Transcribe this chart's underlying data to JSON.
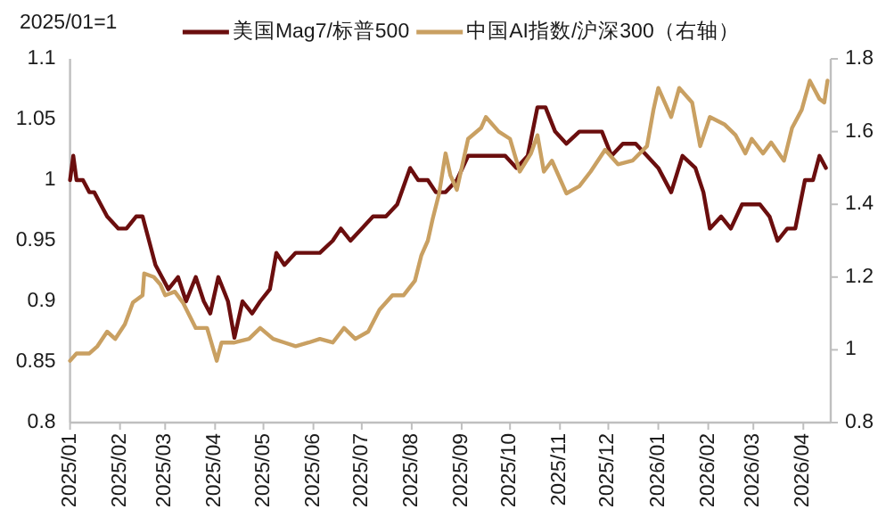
{
  "chart_data": {
    "type": "line",
    "annotations": [
      "2025/01=1"
    ],
    "xlim": [
      "2025-01-01",
      "2026-04-18"
    ],
    "xticks": [
      {
        "value": "2025-01-01",
        "label": "2025/01"
      },
      {
        "value": "2025-02-01",
        "label": "2025/02"
      },
      {
        "value": "2025-03-01",
        "label": "2025/03"
      },
      {
        "value": "2025-04-01",
        "label": "2025/04"
      },
      {
        "value": "2025-05-01",
        "label": "2025/05"
      },
      {
        "value": "2025-06-01",
        "label": "2025/06"
      },
      {
        "value": "2025-07-01",
        "label": "2025/07"
      },
      {
        "value": "2025-08-01",
        "label": "2025/08"
      },
      {
        "value": "2025-09-01",
        "label": "2025/09"
      },
      {
        "value": "2025-10-01",
        "label": "2025/10"
      },
      {
        "value": "2025-11-01",
        "label": "2025/11"
      },
      {
        "value": "2025-12-01",
        "label": "2025/12"
      },
      {
        "value": "2026-01-01",
        "label": "2026/01"
      },
      {
        "value": "2026-02-01",
        "label": "2026/02"
      },
      {
        "value": "2026-03-01",
        "label": "2026/03"
      },
      {
        "value": "2026-04-01",
        "label": "2026/04"
      }
    ],
    "ylim": [
      0.8,
      1.1
    ],
    "yticks": [
      0.8,
      0.85,
      0.9,
      0.95,
      1,
      1.05,
      1.1
    ],
    "y2lim": [
      0.8,
      1.8
    ],
    "y2ticks": [
      0.8,
      1,
      1.2,
      1.4,
      1.6,
      1.8
    ],
    "legend": "top",
    "line_style": "solid",
    "series": [
      {
        "name": "美国Mag7/标普500",
        "color": "#6b0e0e",
        "x": [
          "2025-01-01",
          "2025-01-03",
          "2025-01-05",
          "2025-01-09",
          "2025-01-13",
          "2025-01-16",
          "2025-01-20",
          "2025-01-24",
          "2025-01-31",
          "2025-02-05",
          "2025-02-11",
          "2025-02-15",
          "2025-02-19",
          "2025-02-23",
          "2025-02-27",
          "2025-03-03",
          "2025-03-09",
          "2025-03-14",
          "2025-03-20",
          "2025-03-25",
          "2025-03-29",
          "2025-04-03",
          "2025-04-09",
          "2025-04-13",
          "2025-04-18",
          "2025-04-24",
          "2025-04-29",
          "2025-05-05",
          "2025-05-09",
          "2025-05-14",
          "2025-05-21",
          "2025-05-29",
          "2025-06-05",
          "2025-06-13",
          "2025-06-18",
          "2025-06-24",
          "2025-07-01",
          "2025-07-08",
          "2025-07-16",
          "2025-07-23",
          "2025-07-31",
          "2025-08-05",
          "2025-08-11",
          "2025-08-16",
          "2025-08-22",
          "2025-08-29",
          "2025-09-05",
          "2025-09-13",
          "2025-09-20",
          "2025-09-28",
          "2025-10-05",
          "2025-10-12",
          "2025-10-18",
          "2025-10-23",
          "2025-10-29",
          "2025-11-05",
          "2025-11-13",
          "2025-11-20",
          "2025-11-27",
          "2025-12-03",
          "2025-12-10",
          "2025-12-18",
          "2025-12-25",
          "2026-01-01",
          "2026-01-09",
          "2026-01-16",
          "2026-01-24",
          "2026-01-29",
          "2026-02-02",
          "2026-02-09",
          "2026-02-15",
          "2026-02-22",
          "2026-02-28",
          "2026-03-05",
          "2026-03-11",
          "2026-03-16",
          "2026-03-22",
          "2026-03-27",
          "2026-04-02",
          "2026-04-07",
          "2026-04-11",
          "2026-04-15"
        ],
        "values": [
          1.0,
          1.02,
          1.0,
          1.0,
          0.99,
          0.99,
          0.98,
          0.97,
          0.96,
          0.96,
          0.97,
          0.97,
          0.95,
          0.93,
          0.92,
          0.91,
          0.92,
          0.9,
          0.92,
          0.9,
          0.89,
          0.92,
          0.9,
          0.87,
          0.9,
          0.89,
          0.9,
          0.91,
          0.94,
          0.93,
          0.94,
          0.94,
          0.94,
          0.95,
          0.96,
          0.95,
          0.96,
          0.97,
          0.97,
          0.98,
          1.01,
          1.0,
          1.0,
          0.99,
          0.99,
          1.0,
          1.02,
          1.02,
          1.02,
          1.02,
          1.01,
          1.02,
          1.06,
          1.06,
          1.04,
          1.03,
          1.04,
          1.04,
          1.04,
          1.02,
          1.03,
          1.03,
          1.02,
          1.01,
          0.99,
          1.02,
          1.01,
          0.99,
          0.96,
          0.97,
          0.96,
          0.98,
          0.98,
          0.98,
          0.97,
          0.95,
          0.96,
          0.96,
          1.0,
          1.0,
          1.02,
          1.01
        ]
      },
      {
        "name": "中国AI指数/沪深300（右轴）",
        "color": "#c9a062",
        "axis": "y2",
        "x": [
          "2025-01-01",
          "2025-01-05",
          "2025-01-13",
          "2025-01-18",
          "2025-01-24",
          "2025-01-29",
          "2025-02-04",
          "2025-02-09",
          "2025-02-15",
          "2025-02-16",
          "2025-02-22",
          "2025-02-26",
          "2025-03-01",
          "2025-03-07",
          "2025-03-12",
          "2025-03-20",
          "2025-03-27",
          "2025-04-02",
          "2025-04-05",
          "2025-04-13",
          "2025-04-22",
          "2025-04-29",
          "2025-05-07",
          "2025-05-14",
          "2025-05-21",
          "2025-05-29",
          "2025-06-05",
          "2025-06-13",
          "2025-06-20",
          "2025-06-27",
          "2025-07-05",
          "2025-07-12",
          "2025-07-20",
          "2025-07-27",
          "2025-08-03",
          "2025-08-07",
          "2025-08-11",
          "2025-08-14",
          "2025-08-18",
          "2025-08-22",
          "2025-08-25",
          "2025-08-29",
          "2025-09-05",
          "2025-09-13",
          "2025-09-16",
          "2025-09-24",
          "2025-10-01",
          "2025-10-07",
          "2025-10-14",
          "2025-10-18",
          "2025-10-22",
          "2025-10-27",
          "2025-11-05",
          "2025-11-13",
          "2025-11-20",
          "2025-11-29",
          "2025-12-07",
          "2025-12-16",
          "2025-12-25",
          "2025-12-29",
          "2026-01-01",
          "2026-01-09",
          "2026-01-14",
          "2026-01-22",
          "2026-01-27",
          "2026-02-02",
          "2026-02-11",
          "2026-02-18",
          "2026-02-24",
          "2026-02-28",
          "2026-03-07",
          "2026-03-12",
          "2026-03-20",
          "2026-03-25",
          "2026-03-31",
          "2026-04-05",
          "2026-04-11",
          "2026-04-14",
          "2026-04-16"
        ],
        "values": [
          0.97,
          0.99,
          0.99,
          1.01,
          1.05,
          1.03,
          1.07,
          1.13,
          1.15,
          1.21,
          1.2,
          1.18,
          1.15,
          1.16,
          1.13,
          1.06,
          1.06,
          0.97,
          1.02,
          1.02,
          1.03,
          1.06,
          1.03,
          1.02,
          1.01,
          1.02,
          1.03,
          1.02,
          1.06,
          1.03,
          1.05,
          1.11,
          1.15,
          1.15,
          1.19,
          1.26,
          1.3,
          1.36,
          1.43,
          1.54,
          1.48,
          1.44,
          1.58,
          1.61,
          1.64,
          1.6,
          1.58,
          1.49,
          1.54,
          1.59,
          1.49,
          1.52,
          1.43,
          1.45,
          1.49,
          1.55,
          1.51,
          1.52,
          1.56,
          1.66,
          1.72,
          1.64,
          1.72,
          1.68,
          1.56,
          1.64,
          1.62,
          1.59,
          1.54,
          1.58,
          1.54,
          1.57,
          1.52,
          1.61,
          1.66,
          1.74,
          1.69,
          1.68,
          1.74
        ]
      }
    ]
  }
}
